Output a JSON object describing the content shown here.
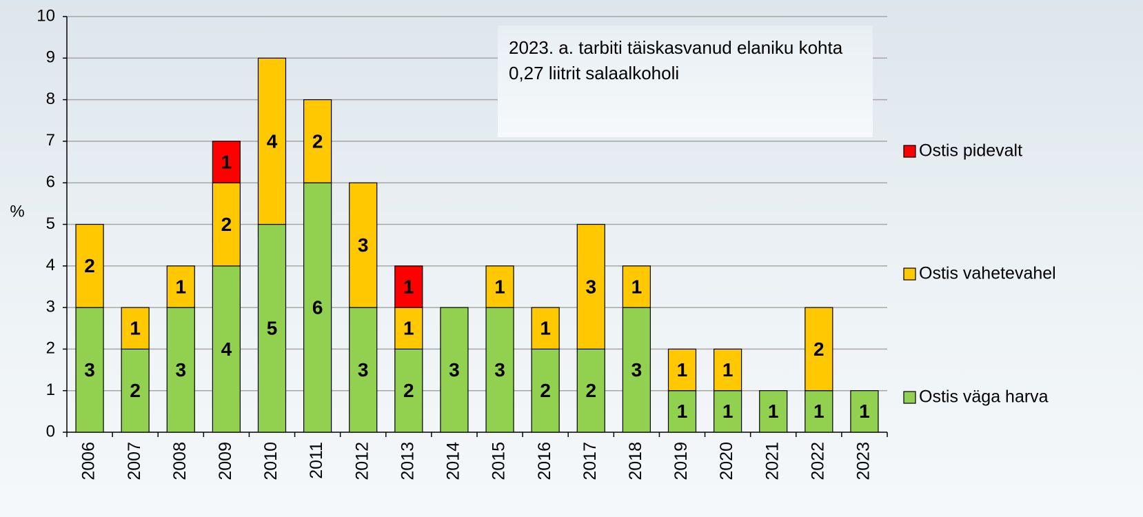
{
  "chart_data": {
    "type": "stacked-bar",
    "ylabel": "%",
    "annotation": "2023. a. tarbiti täiskasvanud elaniku kohta 0,27 liitrit salaalkoholi",
    "categories": [
      "2006",
      "2007",
      "2008",
      "2009",
      "2010",
      "2011",
      "2012",
      "2013",
      "2014",
      "2015",
      "2016",
      "2017",
      "2018",
      "2019",
      "2020",
      "2021",
      "2022",
      "2023"
    ],
    "series": [
      {
        "name": "Ostis väga harva",
        "color": "#92d050",
        "values": [
          3,
          2,
          3,
          4,
          5,
          6,
          3,
          2,
          3,
          3,
          2,
          2,
          3,
          1,
          1,
          1,
          1,
          1
        ]
      },
      {
        "name": "Ostis vahetevahel",
        "color": "#ffc800",
        "values": [
          2,
          1,
          1,
          2,
          4,
          2,
          3,
          1,
          null,
          1,
          1,
          3,
          1,
          1,
          1,
          null,
          2,
          null
        ]
      },
      {
        "name": "Ostis pidevalt",
        "color": "#ff0000",
        "values": [
          null,
          null,
          null,
          1,
          null,
          null,
          null,
          1,
          null,
          null,
          null,
          null,
          null,
          null,
          null,
          null,
          null,
          null
        ]
      }
    ],
    "ylim": [
      0,
      10
    ],
    "yticks": [
      0,
      1,
      2,
      3,
      4,
      5,
      6,
      7,
      8,
      9,
      10
    ],
    "grid": true,
    "legend": "right"
  }
}
